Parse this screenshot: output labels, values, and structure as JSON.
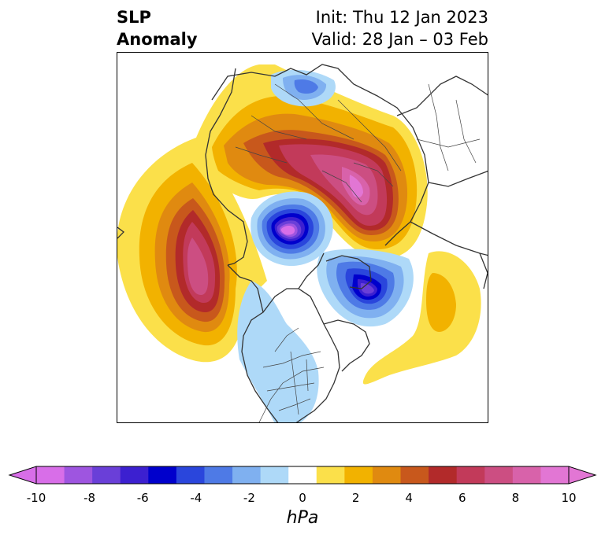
{
  "title": {
    "left_line1": "SLP",
    "left_line2": "Anomaly",
    "init": "Init: Thu 12 Jan 2023",
    "valid": "Valid: 28 Jan – 03 Feb"
  },
  "colorbar": {
    "unit": "hPa",
    "ticks": [
      "-10",
      "-8",
      "-6",
      "-4",
      "-2",
      "0",
      "2",
      "4",
      "6",
      "8",
      "10"
    ],
    "levels": [
      -10,
      -9,
      -8,
      -7,
      -6,
      -5,
      -4,
      -3,
      -2,
      -1,
      1,
      2,
      3,
      4,
      5,
      6,
      7,
      8,
      9,
      10
    ],
    "colors": [
      "#d86ee8",
      "#9e55e0",
      "#6a3fd8",
      "#3c20d0",
      "#0000cc",
      "#2a46dc",
      "#4e7ae6",
      "#7fb0f0",
      "#aed9f8",
      "#ffffff",
      "#fbe04a",
      "#f2b200",
      "#e08a10",
      "#c8581c",
      "#b22a2a",
      "#c23a5a",
      "#cc4e82",
      "#d862aa",
      "#e276d4"
    ],
    "extend": "both"
  },
  "map": {
    "projection": "north-polar-stereographic",
    "features": [
      "coastlines",
      "country-borders",
      "us-state-borders"
    ],
    "anomaly_centers": [
      {
        "region": "Siberia",
        "sign": "positive",
        "peak_hPa": 10
      },
      {
        "region": "Gulf of Alaska / North Pacific",
        "sign": "positive",
        "peak_hPa": 9
      },
      {
        "region": "Arctic Ocean (north of Siberia)",
        "sign": "negative",
        "peak_hPa": -10
      },
      {
        "region": "Greenland / Baffin Bay",
        "sign": "negative",
        "peak_hPa": -9
      },
      {
        "region": "North Atlantic",
        "sign": "positive",
        "peak_hPa": 3
      },
      {
        "region": "Central North America",
        "sign": "negative",
        "peak_hPa": -2
      }
    ]
  }
}
